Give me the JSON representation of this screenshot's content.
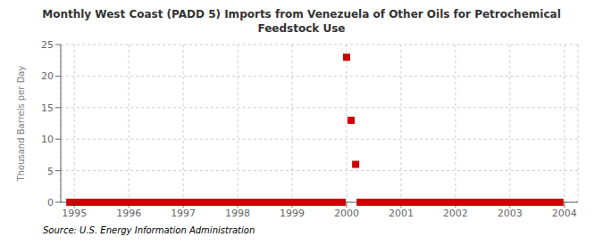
{
  "chart_data": {
    "type": "scatter",
    "title": "Monthly West Coast (PADD 5) Imports from Venezuela of Other Oils for Petrochemical\nFeedstock Use",
    "ylabel": "Thousand Barrels per Day",
    "source": "Source: U.S. Energy Information Administration",
    "color": "#cc0000",
    "marker": "square",
    "grid": true,
    "xlim": [
      1994.75,
      2004.25
    ],
    "xticks": [
      1995,
      1996,
      1997,
      1998,
      1999,
      2000,
      2001,
      2002,
      2003,
      2004
    ],
    "ylim": [
      0,
      25
    ],
    "yticks": [
      0,
      5,
      10,
      15,
      20,
      25
    ],
    "x": [
      1994.917,
      1995.0,
      1995.083,
      1995.167,
      1995.25,
      1995.333,
      1995.417,
      1995.5,
      1995.583,
      1995.667,
      1995.75,
      1995.833,
      1995.917,
      1996.0,
      1996.083,
      1996.167,
      1996.25,
      1996.333,
      1996.417,
      1996.5,
      1996.583,
      1996.667,
      1996.75,
      1996.833,
      1996.917,
      1997.0,
      1997.083,
      1997.167,
      1997.25,
      1997.333,
      1997.417,
      1997.5,
      1997.583,
      1997.667,
      1997.75,
      1997.833,
      1997.917,
      1998.0,
      1998.083,
      1998.167,
      1998.25,
      1998.333,
      1998.417,
      1998.5,
      1998.583,
      1998.667,
      1998.75,
      1998.833,
      1998.917,
      1999.0,
      1999.083,
      1999.167,
      1999.25,
      1999.333,
      1999.417,
      1999.5,
      1999.583,
      1999.667,
      1999.75,
      1999.833,
      1999.917,
      2000.0,
      2000.083,
      2000.167,
      2000.25,
      2000.333,
      2000.417,
      2000.5,
      2000.583,
      2000.667,
      2000.75,
      2000.833,
      2000.917,
      2001.0,
      2001.083,
      2001.167,
      2001.25,
      2001.333,
      2001.417,
      2001.5,
      2001.583,
      2001.667,
      2001.75,
      2001.833,
      2001.917,
      2002.0,
      2002.083,
      2002.167,
      2002.25,
      2002.333,
      2002.417,
      2002.5,
      2002.583,
      2002.667,
      2002.75,
      2002.833,
      2002.917,
      2003.0,
      2003.083,
      2003.167,
      2003.25,
      2003.333,
      2003.417,
      2003.5,
      2003.583,
      2003.667,
      2003.75,
      2003.833,
      2003.917
    ],
    "values": [
      0,
      0,
      0,
      0,
      0,
      0,
      0,
      0,
      0,
      0,
      0,
      0,
      0,
      0,
      0,
      0,
      0,
      0,
      0,
      0,
      0,
      0,
      0,
      0,
      0,
      0,
      0,
      0,
      0,
      0,
      0,
      0,
      0,
      0,
      0,
      0,
      0,
      0,
      0,
      0,
      0,
      0,
      0,
      0,
      0,
      0,
      0,
      0,
      0,
      0,
      0,
      0,
      0,
      0,
      0,
      0,
      0,
      0,
      0,
      0,
      0,
      23,
      13,
      6,
      0,
      0,
      0,
      0,
      0,
      0,
      0,
      0,
      0,
      0,
      0,
      0,
      0,
      0,
      0,
      0,
      0,
      0,
      0,
      0,
      0,
      0,
      0,
      0,
      0,
      0,
      0,
      0,
      0,
      0,
      0,
      0,
      0,
      0,
      0,
      0,
      0,
      0,
      0,
      0,
      0,
      0,
      0,
      0,
      0
    ]
  }
}
